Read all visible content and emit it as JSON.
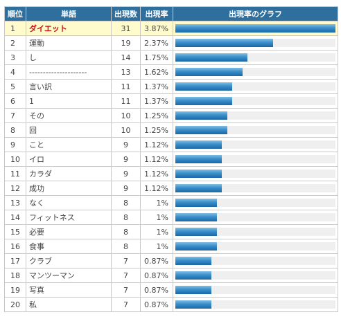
{
  "headers": {
    "rank": "順位",
    "word": "単語",
    "count": "出現数",
    "rate": "出現率",
    "graph": "出現率のグラフ"
  },
  "rows": [
    {
      "rank": "1",
      "word": "ダイエット",
      "count": "31",
      "rate": "3.87%",
      "pct": 3.87
    },
    {
      "rank": "2",
      "word": "運動",
      "count": "19",
      "rate": "2.37%",
      "pct": 2.37
    },
    {
      "rank": "3",
      "word": "し",
      "count": "14",
      "rate": "1.75%",
      "pct": 1.75
    },
    {
      "rank": "4",
      "word": "---------------------",
      "count": "13",
      "rate": "1.62%",
      "pct": 1.62
    },
    {
      "rank": "5",
      "word": "言い訳",
      "count": "11",
      "rate": "1.37%",
      "pct": 1.37
    },
    {
      "rank": "6",
      "word": "1",
      "count": "11",
      "rate": "1.37%",
      "pct": 1.37
    },
    {
      "rank": "7",
      "word": "その",
      "count": "10",
      "rate": "1.25%",
      "pct": 1.25
    },
    {
      "rank": "8",
      "word": "回",
      "count": "10",
      "rate": "1.25%",
      "pct": 1.25
    },
    {
      "rank": "9",
      "word": "こと",
      "count": "9",
      "rate": "1.12%",
      "pct": 1.12
    },
    {
      "rank": "10",
      "word": "イロ",
      "count": "9",
      "rate": "1.12%",
      "pct": 1.12
    },
    {
      "rank": "11",
      "word": "カラダ",
      "count": "9",
      "rate": "1.12%",
      "pct": 1.12
    },
    {
      "rank": "12",
      "word": "成功",
      "count": "9",
      "rate": "1.12%",
      "pct": 1.12
    },
    {
      "rank": "13",
      "word": "なく",
      "count": "8",
      "rate": "1%",
      "pct": 1.0
    },
    {
      "rank": "14",
      "word": "フィットネス",
      "count": "8",
      "rate": "1%",
      "pct": 1.0
    },
    {
      "rank": "15",
      "word": "必要",
      "count": "8",
      "rate": "1%",
      "pct": 1.0
    },
    {
      "rank": "16",
      "word": "食事",
      "count": "8",
      "rate": "1%",
      "pct": 1.0
    },
    {
      "rank": "17",
      "word": "クラブ",
      "count": "7",
      "rate": "0.87%",
      "pct": 0.87
    },
    {
      "rank": "18",
      "word": "マンツーマン",
      "count": "7",
      "rate": "0.87%",
      "pct": 0.87
    },
    {
      "rank": "19",
      "word": "写真",
      "count": "7",
      "rate": "0.87%",
      "pct": 0.87
    },
    {
      "rank": "20",
      "word": "私",
      "count": "7",
      "rate": "0.87%",
      "pct": 0.87
    }
  ],
  "colors": {
    "header_bg": "#2f6f9e",
    "highlight_row": "#fffbcc",
    "highlight_word": "#cc1111",
    "bar": "#2a7fc0",
    "bar_track": "#efefef"
  }
}
